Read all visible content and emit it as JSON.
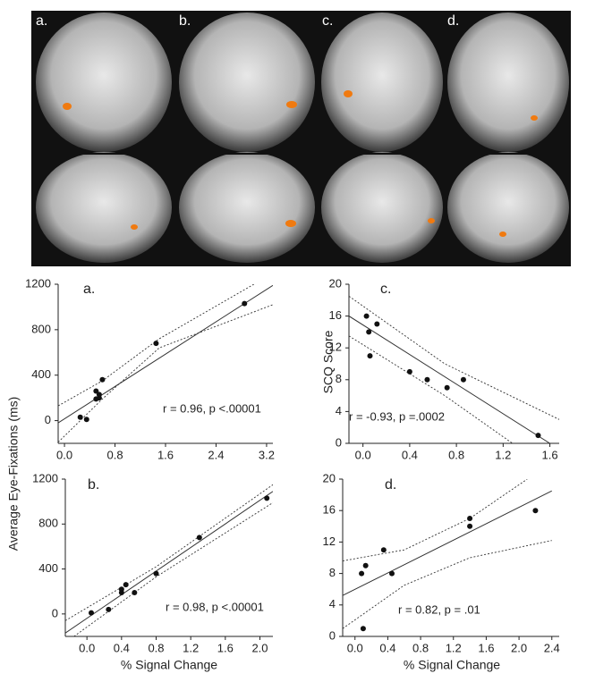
{
  "brain_panels": {
    "labels": [
      "a.",
      "b.",
      "c.",
      "d."
    ]
  },
  "chart_data": [
    {
      "type": "scatter",
      "panel_label": "a.",
      "ylabel": "Average Eye-Fixations (ms)",
      "annotation": "r = 0.96, p <.00001",
      "x": [
        0.25,
        0.35,
        0.5,
        0.5,
        0.55,
        0.55,
        0.6,
        1.45,
        2.85
      ],
      "values": [
        30,
        10,
        190,
        260,
        200,
        230,
        360,
        680,
        1030
      ],
      "xlim": [
        -0.1,
        3.3
      ],
      "ylim": [
        -200,
        1200
      ],
      "xticks": [
        {
          "value": 0,
          "label": "0.0"
        },
        0.8,
        1.6,
        2.4,
        3.2
      ],
      "yticks": [
        0,
        400,
        800,
        1200
      ],
      "fit": {
        "x": [
          -0.1,
          3.3
        ],
        "values": [
          -20,
          1190
        ]
      },
      "ci_upper": {
        "x": [
          -0.1,
          0.6,
          1.5,
          3.0
        ],
        "values": [
          130,
          350,
          720,
          1200
        ]
      },
      "ci_lower": {
        "x": [
          -0.1,
          0.6,
          1.5,
          3.3
        ],
        "values": [
          -190,
          190,
          640,
          1020
        ]
      }
    },
    {
      "type": "scatter",
      "panel_label": "b.",
      "xlabel": "% Signal Change",
      "annotation": "r = 0.98, p <.00001",
      "x": [
        0.05,
        0.25,
        0.4,
        0.4,
        0.45,
        0.55,
        0.8,
        1.3,
        2.08
      ],
      "values": [
        10,
        40,
        190,
        220,
        260,
        190,
        360,
        680,
        1030
      ],
      "xlim": [
        -0.25,
        2.15
      ],
      "ylim": [
        -200,
        1200
      ],
      "xticks": [
        {
          "value": 0,
          "label": "0.0"
        },
        0.4,
        0.8,
        1.2,
        1.6,
        {
          "value": 2,
          "label": "2.0"
        }
      ],
      "yticks": [
        0,
        400,
        800,
        1200
      ],
      "fit": {
        "x": [
          -0.25,
          2.15
        ],
        "values": [
          -170,
          1090
        ]
      },
      "ci_upper": {
        "x": [
          -0.25,
          0.8,
          2.15
        ],
        "values": [
          -60,
          420,
          1150
        ]
      },
      "ci_lower": {
        "x": [
          -0.15,
          0.8,
          2.15
        ],
        "values": [
          -200,
          330,
          990
        ]
      }
    },
    {
      "type": "scatter",
      "panel_label": "c.",
      "ylabel": "SCQ Score",
      "annotation": "r = -0.93, p =.0002",
      "x": [
        0.03,
        0.05,
        0.06,
        0.12,
        0.4,
        0.55,
        0.72,
        0.86,
        1.5
      ],
      "values": [
        16,
        14,
        11,
        15,
        9,
        8,
        7,
        8,
        1
      ],
      "xlim": [
        -0.12,
        1.68
      ],
      "ylim": [
        0,
        20
      ],
      "xticks": [
        {
          "value": 0,
          "label": "0.0"
        },
        0.4,
        0.8,
        1.2,
        1.6
      ],
      "yticks": [
        0,
        4,
        8,
        12,
        16,
        20
      ],
      "fit": {
        "x": [
          -0.12,
          1.6
        ],
        "values": [
          16,
          0
        ]
      },
      "ci_upper": {
        "x": [
          -0.12,
          0.7,
          1.68
        ],
        "values": [
          18.5,
          10,
          3
        ]
      },
      "ci_lower": {
        "x": [
          -0.12,
          0.7,
          1.28
        ],
        "values": [
          13.5,
          6,
          0
        ]
      }
    },
    {
      "type": "scatter",
      "panel_label": "d.",
      "xlabel": "% Signal Change",
      "annotation": "r = 0.82, p = .01",
      "x": [
        0.08,
        0.1,
        0.13,
        0.35,
        0.45,
        1.4,
        1.4,
        2.2
      ],
      "values": [
        8,
        1,
        9,
        11,
        8,
        14,
        15,
        16
      ],
      "xlim": [
        -0.15,
        2.49
      ],
      "ylim": [
        0,
        20
      ],
      "xticks": [
        {
          "value": 0,
          "label": "0.0"
        },
        0.4,
        0.8,
        1.2,
        1.6,
        {
          "value": 2,
          "label": "2.0"
        },
        2.4
      ],
      "yticks": [
        0,
        4,
        8,
        12,
        16,
        20
      ],
      "fit": {
        "x": [
          -0.15,
          2.4
        ],
        "values": [
          5.2,
          18.5
        ]
      },
      "ci_upper": {
        "x": [
          -0.15,
          0.6,
          1.4,
          2.1
        ],
        "values": [
          9.6,
          11,
          15,
          20
        ]
      },
      "ci_lower": {
        "x": [
          -0.15,
          0.6,
          1.4,
          2.4
        ],
        "values": [
          1,
          6.5,
          10,
          12.2
        ]
      }
    }
  ]
}
